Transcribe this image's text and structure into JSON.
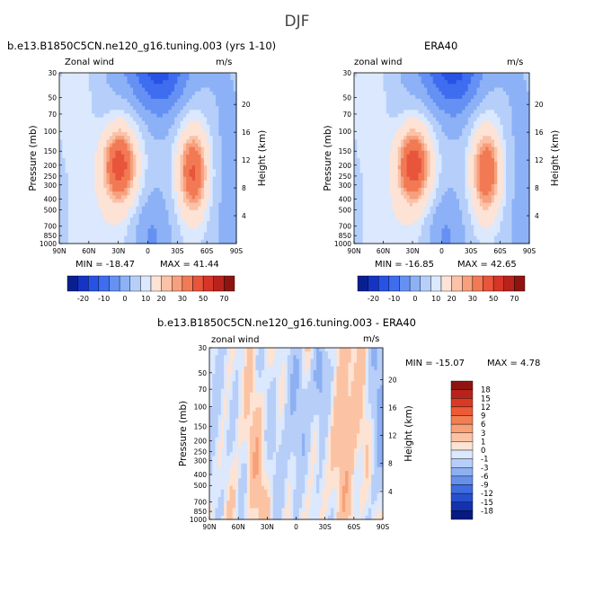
{
  "page_title": "DJF",
  "panels": [
    {
      "title": "b.e13.B1850C5CN.ne120_g16.tuning.003 (yrs 1-10)",
      "variable": "Zonal wind",
      "units": "m/s",
      "min_label": "MIN = -18.47",
      "max_label": "MAX = 41.44"
    },
    {
      "title": "ERA40",
      "variable": "zonal wind",
      "units": "m/s",
      "min_label": "MIN = -16.85",
      "max_label": "MAX = 42.65"
    },
    {
      "title": "b.e13.B1850C5CN.ne120_g16.tuning.003 - ERA40",
      "variable": "zonal wind",
      "units": "m/s",
      "min_label": "MIN = -15.07",
      "max_label": "MAX =   4.78"
    }
  ],
  "colorbar_top": {
    "labels": [
      "-20",
      "-10",
      "0",
      "10",
      "20",
      "30",
      "50",
      "70"
    ],
    "colors": [
      "#0a1f8f",
      "#1533c4",
      "#2752e6",
      "#3f6df0",
      "#6491f3",
      "#8cb1f6",
      "#b5cffa",
      "#dbe8fd",
      "#fde3d6",
      "#fbc2a8",
      "#f6a07d",
      "#f17a55",
      "#e8553a",
      "#d63528",
      "#b9221c",
      "#8f1410"
    ]
  },
  "colorbar_diff": {
    "labels": [
      "18",
      "15",
      "12",
      "9",
      "6",
      "3",
      "1",
      "0",
      "-1",
      "-3",
      "-6",
      "-9",
      "-12",
      "-15",
      "-18"
    ],
    "colors": [
      "#8f1410",
      "#b7231c",
      "#d93a26",
      "#ec5a36",
      "#f47d52",
      "#f8a077",
      "#fbc3a3",
      "#fde3d3",
      "#dbe8fd",
      "#b6cef8",
      "#8db0f2",
      "#6790ea",
      "#3f6ce0",
      "#2750cc",
      "#1232b0",
      "#071a80"
    ]
  },
  "chart_data": [
    {
      "type": "heatmap",
      "title": "b.e13.B1850C5CN.ne120_g16.tuning.003 (yrs 1-10)",
      "subtitle": "Zonal wind (m/s)",
      "xlabel": "",
      "ylabel": "Pressure (mb)",
      "y2label": "Height (km)",
      "x_ticks": [
        "90N",
        "60N",
        "30N",
        "0",
        "30S",
        "60S",
        "90S"
      ],
      "y_ticks": [
        30,
        50,
        70,
        100,
        150,
        200,
        250,
        300,
        400,
        500,
        700,
        850,
        1000
      ],
      "y2_ticks": [
        4,
        8,
        12,
        16,
        20
      ],
      "y_scale": "log",
      "ylim": [
        1000,
        30
      ],
      "min": -18.47,
      "max": 41.44,
      "features": [
        {
          "lat": 28,
          "p": 200,
          "value": 41.44,
          "kind": "jet max"
        },
        {
          "lat": -46,
          "p": 220,
          "value": 36,
          "kind": "jet max"
        },
        {
          "lat": -12,
          "p": 35,
          "value": -18.47,
          "kind": "easterly min"
        }
      ]
    },
    {
      "type": "heatmap",
      "title": "ERA40",
      "subtitle": "zonal wind (m/s)",
      "xlabel": "",
      "ylabel": "Pressure (mb)",
      "y2label": "Height (km)",
      "x_ticks": [
        "90N",
        "60N",
        "30N",
        "0",
        "30S",
        "60S",
        "90S"
      ],
      "y_ticks": [
        30,
        50,
        70,
        100,
        150,
        200,
        250,
        300,
        400,
        500,
        700,
        850,
        1000
      ],
      "y2_ticks": [
        4,
        8,
        12,
        16,
        20
      ],
      "y_scale": "log",
      "ylim": [
        1000,
        30
      ],
      "min": -16.85,
      "max": 42.65,
      "features": [
        {
          "lat": 30,
          "p": 200,
          "value": 42.65,
          "kind": "jet max"
        },
        {
          "lat": -46,
          "p": 240,
          "value": 34,
          "kind": "jet max"
        },
        {
          "lat": -12,
          "p": 35,
          "value": -16.85,
          "kind": "easterly min"
        }
      ]
    },
    {
      "type": "heatmap",
      "title": "b.e13.B1850C5CN.ne120_g16.tuning.003 - ERA40",
      "subtitle": "zonal wind (m/s)",
      "xlabel": "",
      "ylabel": "Pressure (mb)",
      "y2label": "Height (km)",
      "x_ticks": [
        "90N",
        "60N",
        "30N",
        "0",
        "30S",
        "60S",
        "90S"
      ],
      "y_ticks": [
        30,
        50,
        70,
        100,
        150,
        200,
        250,
        300,
        400,
        500,
        700,
        850,
        1000
      ],
      "y2_ticks": [
        4,
        8,
        12,
        16,
        20
      ],
      "y_scale": "log",
      "ylim": [
        1000,
        30
      ],
      "min": -15.07,
      "max": 4.78,
      "levels": [
        -18,
        -15,
        -12,
        -9,
        -6,
        -3,
        -1,
        0,
        1,
        3,
        6,
        9,
        12,
        15,
        18
      ]
    }
  ]
}
